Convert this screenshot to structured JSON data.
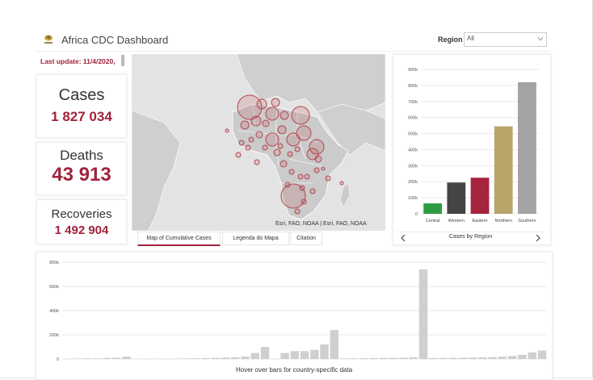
{
  "header": {
    "title": "Africa CDC Dashboard",
    "region_label": "Region",
    "region_value": "All"
  },
  "last_update": "Last update: 11/4/2020,",
  "stats": {
    "cases": {
      "label": "Cases",
      "value": "1 827 034"
    },
    "deaths": {
      "label": "Deaths",
      "value": "43 913"
    },
    "recoveries": {
      "label": "Recoveries",
      "value": "1 492 904"
    }
  },
  "map": {
    "attribution": "Esri, FAO, NOAA | Esri, FAO, NOAA",
    "bubble_color": "#b5474f"
  },
  "map_tabs": [
    "Map of Cumulative Cases",
    "Legenda do Mapa",
    "Citation"
  ],
  "colors": {
    "accent": "#a0243b",
    "grid": "#e9e9e9"
  },
  "chart_data": [
    {
      "type": "bar",
      "title": "",
      "categories": [
        "Central",
        "Western",
        "Eastern",
        "Northern",
        "Southern"
      ],
      "values": [
        65000,
        195000,
        225000,
        545000,
        820000
      ],
      "colors": [
        "#2e9b43",
        "#444444",
        "#a5243e",
        "#b7a56a",
        "#a3a3a3"
      ],
      "ylim": [
        0,
        900000
      ],
      "yticks": [
        0,
        100000,
        200000,
        300000,
        400000,
        500000,
        600000,
        700000,
        800000,
        900000
      ],
      "ytick_labels": [
        "0",
        "100k",
        "200k",
        "300k",
        "400k",
        "500k",
        "600k",
        "700k",
        "800k",
        "900k"
      ],
      "xlabel": "Cases by Region"
    },
    {
      "type": "bar",
      "title": "",
      "xlabel": "Hover over bars for country-specific data",
      "ylim": [
        0,
        800000
      ],
      "yticks": [
        0,
        200000,
        400000,
        600000,
        800000
      ],
      "ytick_labels": [
        "0",
        "200k",
        "400k",
        "600k",
        "800k"
      ],
      "values": [
        3000,
        4000,
        5000,
        6000,
        9000,
        12000,
        20000,
        2000,
        3000,
        3000,
        3000,
        4000,
        5000,
        6000,
        8000,
        10000,
        12000,
        15000,
        20000,
        50000,
        100000,
        3000,
        50000,
        65000,
        65000,
        75000,
        120000,
        240000,
        5000,
        6000,
        7000,
        8000,
        9000,
        10000,
        12000,
        15000,
        740000,
        8000,
        9000,
        10000,
        11000,
        12000,
        14000,
        16000,
        20000,
        25000,
        35000,
        55000,
        70000
      ]
    }
  ]
}
